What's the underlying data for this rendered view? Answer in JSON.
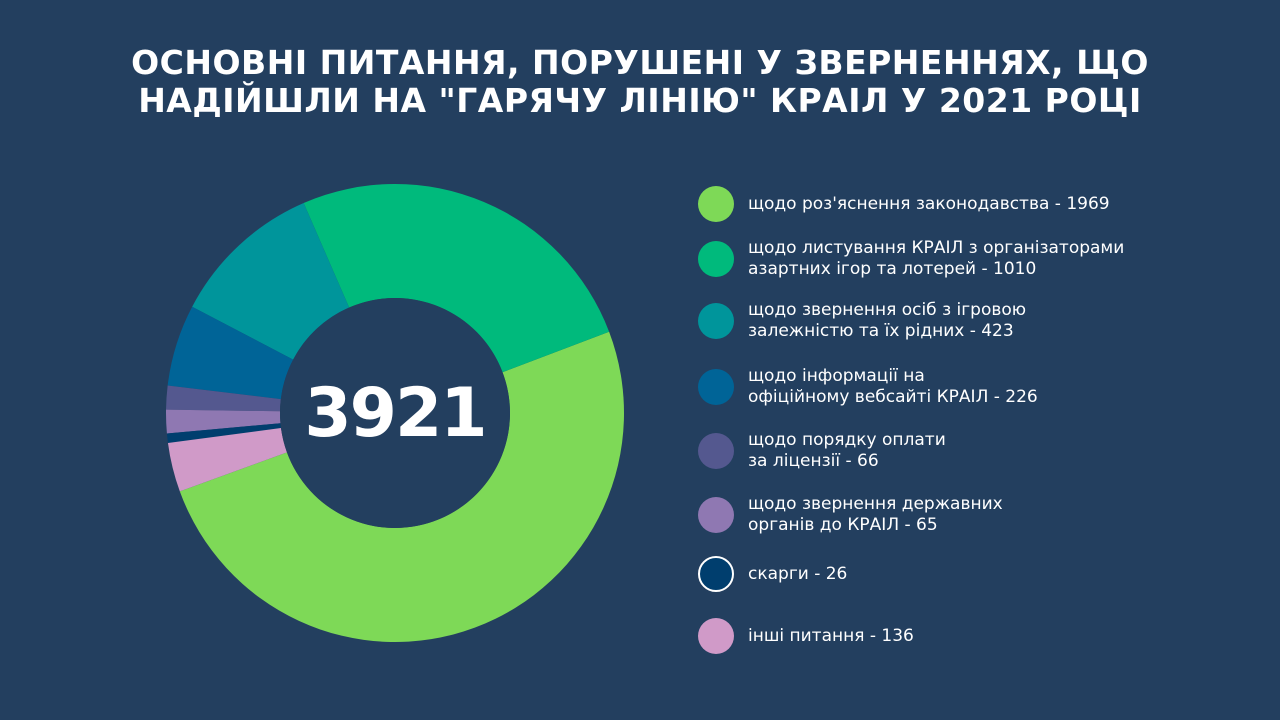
{
  "title": {
    "line1": "Основні питання, порушені у зверненнях, що",
    "line2": "надійшли на \"гарячу лінію\" КРАІЛ у 2021 році"
  },
  "center_total": "3921",
  "legend": [
    {
      "label": "щодо роз'яснення законодавства - 1969",
      "color": "#7ED957",
      "border": ""
    },
    {
      "label": "щодо листування КРАІЛ з організаторами\nазартних ігор та лотерей - 1010",
      "color": "#00BA7C",
      "border": ""
    },
    {
      "label": "щодо звернення осіб з ігровою\nзалежністю та їх рідних - 423",
      "color": "#00959B",
      "border": ""
    },
    {
      "label": "щодо інформації на\nофіційному вебсайті КРАІЛ - 226",
      "color": "#006497",
      "border": ""
    },
    {
      "label": "щодо порядку оплати\nза ліцензії - 66",
      "color": "#54588F",
      "border": ""
    },
    {
      "label": "щодо звернення державних\nорганів до КРАІЛ - 65",
      "color": "#8F78B2",
      "border": ""
    },
    {
      "label": "скарги - 26",
      "color": "#003E6E",
      "border": "#ffffff"
    },
    {
      "label": "інші питання - 136",
      "color": "#D09AC8",
      "border": ""
    }
  ],
  "chart_data": {
    "type": "pie",
    "categories": [
      "щодо роз'яснення законодавства",
      "щодо листування КРАІЛ з організаторами азартних ігор та лотерей",
      "щодо звернення осіб з ігровою залежністю та їх рідних",
      "щодо інформації на офіційному вебсайті КРАІЛ",
      "щодо порядку оплати за ліцензії",
      "щодо звернення державних органів до КРАІЛ",
      "скарги",
      "інші питання"
    ],
    "values": [
      1969,
      1010,
      423,
      226,
      66,
      65,
      26,
      136
    ],
    "colors": [
      "#7ED957",
      "#00BA7C",
      "#00959B",
      "#006497",
      "#54588F",
      "#8F78B2",
      "#003E6E",
      "#D09AC8"
    ],
    "total": 3921,
    "style": "donut",
    "start_angle_deg": 200,
    "direction": "counterclockwise",
    "title": "Основні питання, порушені у зверненнях, що надійшли на \"гарячу лінію\" КРАІЛ у 2021 році",
    "legend_position": "right"
  }
}
